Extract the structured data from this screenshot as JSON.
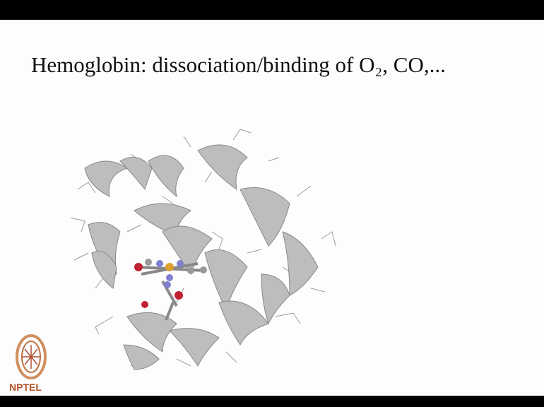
{
  "slide": {
    "title": "Hemoglobin: dissociation/binding of O₂, CO,...",
    "logo_text": "NPTEL"
  }
}
